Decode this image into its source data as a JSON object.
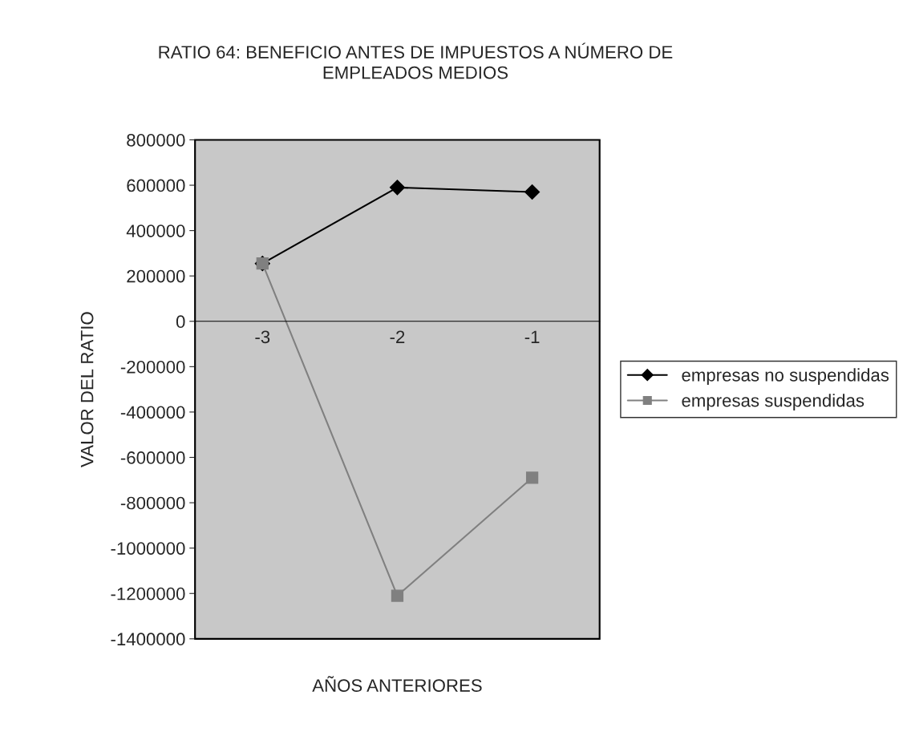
{
  "chart_data": {
    "type": "line",
    "title": "RATIO 64: BENEFICIO ANTES DE IMPUESTOS A NÚMERO DE\nEMPLEADOS MEDIOS",
    "xlabel": "AÑOS ANTERIORES",
    "ylabel": "VALOR DEL RATIO",
    "categories": [
      "-3",
      "-2",
      "-1"
    ],
    "series": [
      {
        "name": "empresas no suspendidas",
        "color": "#000000",
        "marker": "diamond",
        "values": [
          255000,
          590000,
          570000
        ]
      },
      {
        "name": "empresas suspendidas",
        "color": "#808080",
        "marker": "square",
        "values": [
          255000,
          -1210000,
          -690000
        ]
      }
    ],
    "ylim": [
      -1400000,
      800000
    ],
    "yticks": [
      -1400000,
      -1200000,
      -1000000,
      -800000,
      -600000,
      -400000,
      -200000,
      0,
      200000,
      400000,
      600000,
      800000
    ],
    "grid": false,
    "legend": "right",
    "line_style": "solid"
  }
}
